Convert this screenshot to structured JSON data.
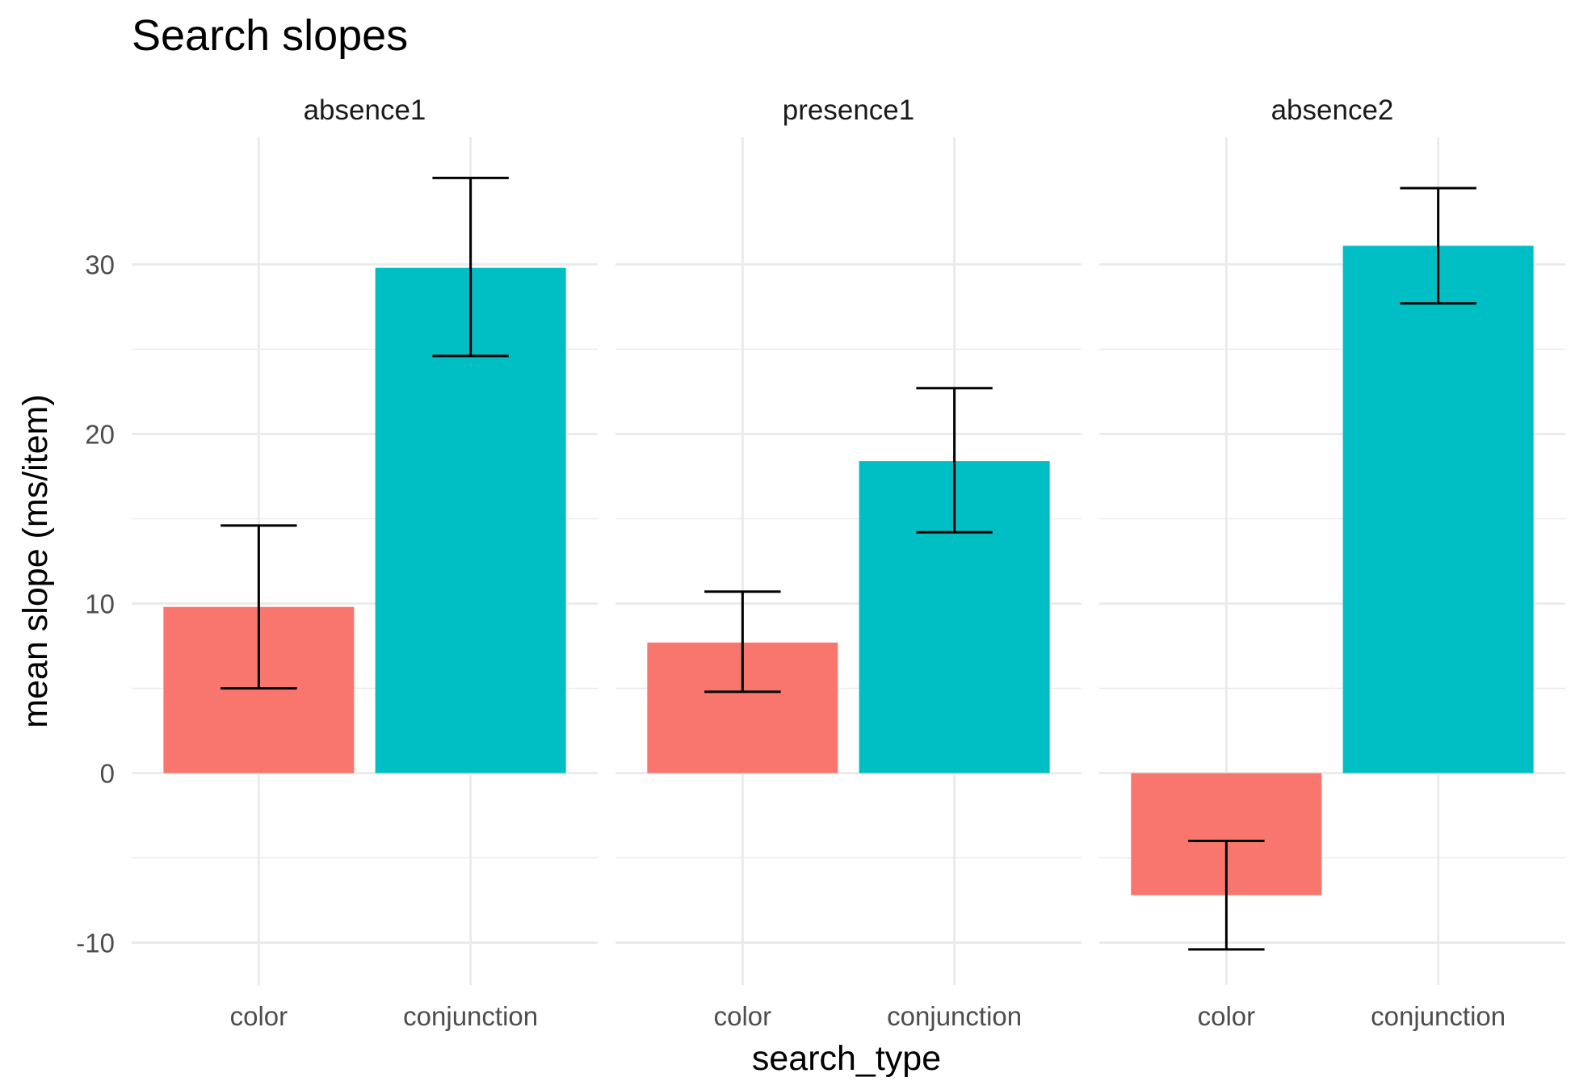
{
  "chart_data": {
    "type": "bar",
    "title": "Search slopes",
    "xlabel": "search_type",
    "ylabel": "mean slope (ms/item)",
    "ylim": [
      -12.5,
      37.5
    ],
    "yticks": [
      -10,
      0,
      10,
      20,
      30
    ],
    "categories": [
      "color",
      "conjunction"
    ],
    "colors": {
      "color": "#F8766D",
      "conjunction": "#00BFC4"
    },
    "grid": true,
    "legend": "none",
    "panels": [
      {
        "name": "absence1",
        "bars": [
          {
            "category": "color",
            "value": 9.8,
            "ymin": 5.0,
            "ymax": 14.6
          },
          {
            "category": "conjunction",
            "value": 29.8,
            "ymin": 24.6,
            "ymax": 35.1
          }
        ]
      },
      {
        "name": "presence1",
        "bars": [
          {
            "category": "color",
            "value": 7.7,
            "ymin": 4.8,
            "ymax": 10.7
          },
          {
            "category": "conjunction",
            "value": 18.4,
            "ymin": 14.2,
            "ymax": 22.7
          }
        ]
      },
      {
        "name": "absence2",
        "bars": [
          {
            "category": "color",
            "value": -7.2,
            "ymin": -10.4,
            "ymax": -4.0
          },
          {
            "category": "conjunction",
            "value": 31.1,
            "ymin": 27.7,
            "ymax": 34.5
          }
        ]
      }
    ]
  }
}
